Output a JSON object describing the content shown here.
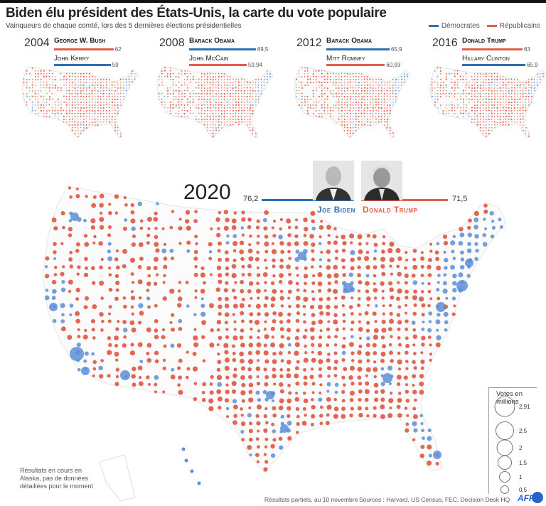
{
  "title": "Biden élu président des États-Unis, la carte du vote populaire",
  "subtitle": "Vainqueurs de chaque comté, lors des 5 dernières élections présidentielles",
  "legend": {
    "dem": "Démocrates",
    "rep": "Républicains"
  },
  "colors": {
    "dem": "#2f6fb3",
    "rep": "#e0604a",
    "dem_dot": "#5b8fd6",
    "rep_dot": "#e0553f"
  },
  "elections": [
    {
      "year": "2004",
      "winner": {
        "name": "George W. Bush",
        "party": "rep",
        "value": "62"
      },
      "loser": {
        "name": "John Kerry",
        "party": "dem",
        "value": "59"
      }
    },
    {
      "year": "2008",
      "winner": {
        "name": "Barack Obama",
        "party": "dem",
        "value": "69,5"
      },
      "loser": {
        "name": "John McCain",
        "party": "rep",
        "value": "59,94"
      }
    },
    {
      "year": "2012",
      "winner": {
        "name": "Barack Obama",
        "party": "dem",
        "value": "65,9"
      },
      "loser": {
        "name": "Mitt Romney",
        "party": "rep",
        "value": "60,93"
      }
    },
    {
      "year": "2016",
      "winner": {
        "name": "Donald Trump",
        "party": "rep",
        "value": "63"
      },
      "loser": {
        "name": "Hillary Clinton",
        "party": "dem",
        "value": "65,9"
      }
    }
  ],
  "main": {
    "year": "2020",
    "dem": {
      "name": "Joe Biden",
      "value": "76,2"
    },
    "rep": {
      "name": "Donald Trump",
      "value": "71,5"
    }
  },
  "alaska_note": "Résultats en cours en Alaska, pas de données détaillées pour le moment",
  "size_legend": {
    "title": "Votes en millions",
    "values": [
      "2,91",
      "2,5",
      "2",
      "1,5",
      "1",
      "0,5"
    ]
  },
  "footer": {
    "partial": "Résultats partiels, au 10 novembre",
    "sources": "Sources : Harvard, US Census, FEC, Decision Desk HQ",
    "logo": "AFP"
  }
}
